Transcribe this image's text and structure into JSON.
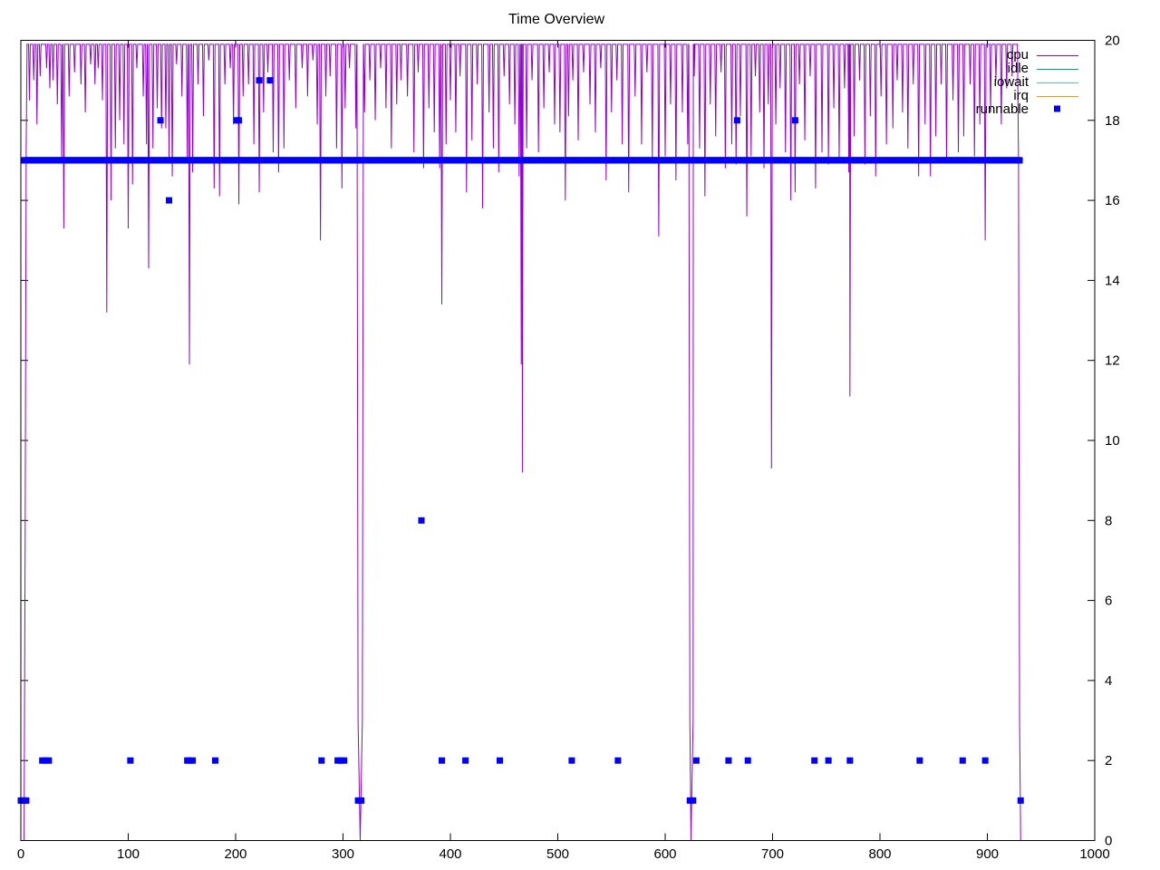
{
  "chart_data": {
    "type": "line",
    "title": "Time Overview",
    "xlabel": "",
    "ylabel": "",
    "xlim": [
      0,
      1000
    ],
    "ylim": [
      0,
      20
    ],
    "x_ticks": [
      0,
      100,
      200,
      300,
      400,
      500,
      600,
      700,
      800,
      900,
      1000
    ],
    "y_ticks": [
      0,
      2,
      4,
      6,
      8,
      10,
      12,
      14,
      16,
      18,
      20
    ],
    "y_axis_side": "right",
    "grid": false,
    "legend_position": "top-right",
    "series": [
      {
        "name": "cpu",
        "style": "line",
        "color": "#9400d3",
        "base_level": 19.9,
        "start_ramp": [
          [
            0,
            0
          ],
          [
            3,
            0
          ],
          [
            4,
            7.5
          ],
          [
            5,
            17.5
          ],
          [
            7,
            19.9
          ]
        ],
        "end_ramp": [
          [
            928,
            19.9
          ],
          [
            929,
            17
          ],
          [
            930,
            3
          ],
          [
            931,
            0
          ]
        ],
        "dips": [
          [
            5,
            17.3
          ],
          [
            8,
            18.5
          ],
          [
            12,
            19.0
          ],
          [
            15,
            17.9
          ],
          [
            18,
            19.1
          ],
          [
            24,
            19.3
          ],
          [
            27,
            18.8
          ],
          [
            30,
            19.0
          ],
          [
            34,
            18.4
          ],
          [
            38,
            17.0
          ],
          [
            40,
            15.3
          ],
          [
            45,
            18.6
          ],
          [
            50,
            19.2
          ],
          [
            56,
            18.9
          ],
          [
            60,
            18.2
          ],
          [
            65,
            19.4
          ],
          [
            69,
            18.9
          ],
          [
            72,
            19.3
          ],
          [
            76,
            18.5
          ],
          [
            80,
            13.2
          ],
          [
            84,
            16.0
          ],
          [
            88,
            17.3
          ],
          [
            92,
            18.0
          ],
          [
            96,
            17.4
          ],
          [
            100,
            15.3
          ],
          [
            104,
            16.4
          ],
          [
            108,
            19.3
          ],
          [
            114,
            18.6
          ],
          [
            117,
            17.4
          ],
          [
            119,
            14.3
          ],
          [
            123,
            17.3
          ],
          [
            127,
            18.3
          ],
          [
            131,
            17.8
          ],
          [
            135,
            17.8
          ],
          [
            138,
            17.0
          ],
          [
            141,
            16.6
          ],
          [
            145,
            19.4
          ],
          [
            150,
            18.6
          ],
          [
            155,
            17.0
          ],
          [
            157,
            11.9
          ],
          [
            160,
            16.7
          ],
          [
            165,
            18.9
          ],
          [
            170,
            18.1
          ],
          [
            175,
            19.5
          ],
          [
            180,
            16.3
          ],
          [
            185,
            16.1
          ],
          [
            190,
            18.9
          ],
          [
            195,
            19.3
          ],
          [
            198,
            17.9
          ],
          [
            203,
            15.9
          ],
          [
            207,
            18.6
          ],
          [
            212,
            18.9
          ],
          [
            217,
            17.4
          ],
          [
            222,
            16.2
          ],
          [
            226,
            18.2
          ],
          [
            230,
            19.2
          ],
          [
            235,
            17.2
          ],
          [
            240,
            16.7
          ],
          [
            245,
            17.3
          ],
          [
            250,
            19.0
          ],
          [
            256,
            18.3
          ],
          [
            262,
            19.3
          ],
          [
            267,
            18.6
          ],
          [
            272,
            19.5
          ],
          [
            276,
            17.9
          ],
          [
            279,
            15.0
          ],
          [
            284,
            18.6
          ],
          [
            288,
            19.1
          ],
          [
            294,
            17.3
          ],
          [
            299,
            16.3
          ],
          [
            302,
            18.3
          ],
          [
            306,
            19.3
          ],
          [
            312,
            17.8
          ],
          [
            320,
            18.2
          ],
          [
            325,
            19.0
          ],
          [
            330,
            18.0
          ],
          [
            335,
            19.3
          ],
          [
            340,
            18.3
          ],
          [
            345,
            17.3
          ],
          [
            350,
            18.4
          ],
          [
            354,
            19.0
          ],
          [
            360,
            18.6
          ],
          [
            366,
            17.2
          ],
          [
            370,
            19.2
          ],
          [
            375,
            16.8
          ],
          [
            380,
            18.3
          ],
          [
            385,
            17.7
          ],
          [
            390,
            16.8
          ],
          [
            392,
            13.4
          ],
          [
            396,
            17.4
          ],
          [
            400,
            18.5
          ],
          [
            405,
            17.7
          ],
          [
            409,
            19.1
          ],
          [
            415,
            16.2
          ],
          [
            420,
            17.5
          ],
          [
            425,
            18.9
          ],
          [
            430,
            15.8
          ],
          [
            436,
            18.2
          ],
          [
            440,
            17.3
          ],
          [
            445,
            16.7
          ],
          [
            450,
            19.1
          ],
          [
            455,
            18.4
          ],
          [
            460,
            17.9
          ],
          [
            464,
            16.6
          ],
          [
            466,
            11.9
          ],
          [
            467,
            9.2
          ],
          [
            471,
            17.3
          ],
          [
            476,
            19.0
          ],
          [
            482,
            17.2
          ],
          [
            487,
            18.3
          ],
          [
            492,
            19.2
          ],
          [
            497,
            17.9
          ],
          [
            502,
            17.7
          ],
          [
            507,
            16.0
          ],
          [
            510,
            18.1
          ],
          [
            514,
            19.0
          ],
          [
            519,
            17.5
          ],
          [
            524,
            19.2
          ],
          [
            530,
            18.4
          ],
          [
            535,
            17.7
          ],
          [
            540,
            19.3
          ],
          [
            545,
            16.5
          ],
          [
            550,
            18.2
          ],
          [
            555,
            19.0
          ],
          [
            560,
            17.4
          ],
          [
            566,
            16.2
          ],
          [
            572,
            18.6
          ],
          [
            578,
            17.4
          ],
          [
            583,
            19.2
          ],
          [
            588,
            17.0
          ],
          [
            594,
            15.1
          ],
          [
            600,
            17.1
          ],
          [
            605,
            18.4
          ],
          [
            610,
            16.5
          ],
          [
            616,
            18.2
          ],
          [
            621,
            17.4
          ],
          [
            627,
            19.1
          ],
          [
            632,
            17.3
          ],
          [
            637,
            16.1
          ],
          [
            642,
            18.4
          ],
          [
            647,
            17.6
          ],
          [
            652,
            19.2
          ],
          [
            656,
            16.8
          ],
          [
            662,
            17.4
          ],
          [
            666,
            16.9
          ],
          [
            670,
            18.1
          ],
          [
            676,
            15.6
          ],
          [
            680,
            17.1
          ],
          [
            684,
            19.1
          ],
          [
            688,
            18.2
          ],
          [
            692,
            16.8
          ],
          [
            696,
            18.4
          ],
          [
            699,
            9.3
          ],
          [
            703,
            17.9
          ],
          [
            707,
            18.8
          ],
          [
            712,
            17.2
          ],
          [
            717,
            16.0
          ],
          [
            721,
            16.2
          ],
          [
            725,
            18.9
          ],
          [
            730,
            17.5
          ],
          [
            735,
            19.1
          ],
          [
            740,
            16.3
          ],
          [
            746,
            17.2
          ],
          [
            752,
            16.9
          ],
          [
            757,
            18.3
          ],
          [
            762,
            17.0
          ],
          [
            767,
            18.8
          ],
          [
            771,
            16.7
          ],
          [
            772,
            11.1
          ],
          [
            776,
            17.6
          ],
          [
            781,
            19.0
          ],
          [
            786,
            16.9
          ],
          [
            791,
            18.1
          ],
          [
            796,
            16.6
          ],
          [
            801,
            18.6
          ],
          [
            806,
            17.4
          ],
          [
            812,
            17.8
          ],
          [
            816,
            19.0
          ],
          [
            821,
            18.2
          ],
          [
            826,
            17.3
          ],
          [
            831,
            18.9
          ],
          [
            836,
            16.6
          ],
          [
            842,
            17.9
          ],
          [
            847,
            16.6
          ],
          [
            852,
            17.6
          ],
          [
            857,
            18.9
          ],
          [
            862,
            17.0
          ],
          [
            868,
            18.5
          ],
          [
            873,
            17.2
          ],
          [
            878,
            17.6
          ],
          [
            884,
            18.9
          ],
          [
            888,
            17.1
          ],
          [
            893,
            17.9
          ],
          [
            898,
            15.0
          ],
          [
            903,
            18.2
          ],
          [
            908,
            19.0
          ],
          [
            913,
            17.9
          ],
          [
            918,
            18.8
          ],
          [
            923,
            19.1
          ]
        ],
        "gaps": [
          {
            "start": 313,
            "bottom": 316,
            "end": 319
          },
          {
            "start": 622,
            "bottom": 624,
            "end": 627
          }
        ]
      },
      {
        "name": "idle",
        "style": "line",
        "color": "#009e73",
        "points": []
      },
      {
        "name": "iowait",
        "style": "line",
        "color": "#56b4e9",
        "points": []
      },
      {
        "name": "irq",
        "style": "line",
        "color": "#e69f00",
        "points": []
      },
      {
        "name": "runnable",
        "style": "points",
        "color": "#0000ff",
        "band": {
          "y": 17,
          "x_start": 3,
          "x_end": 930
        },
        "points": [
          [
            0,
            1
          ],
          [
            3,
            1
          ],
          [
            5,
            1
          ],
          [
            20,
            2
          ],
          [
            23,
            2
          ],
          [
            26,
            2
          ],
          [
            102,
            2
          ],
          [
            130,
            18
          ],
          [
            138,
            16
          ],
          [
            155,
            2
          ],
          [
            157,
            2
          ],
          [
            160,
            2
          ],
          [
            181,
            2
          ],
          [
            201,
            18
          ],
          [
            203,
            18
          ],
          [
            222,
            19
          ],
          [
            232,
            19
          ],
          [
            280,
            2
          ],
          [
            295,
            2
          ],
          [
            298,
            2
          ],
          [
            301,
            2
          ],
          [
            314,
            1
          ],
          [
            317,
            1
          ],
          [
            373,
            8
          ],
          [
            392,
            2
          ],
          [
            414,
            2
          ],
          [
            446,
            2
          ],
          [
            513,
            2
          ],
          [
            556,
            2
          ],
          [
            623,
            1
          ],
          [
            626,
            1
          ],
          [
            629,
            2
          ],
          [
            667,
            18
          ],
          [
            659,
            2
          ],
          [
            677,
            2
          ],
          [
            721,
            18
          ],
          [
            739,
            2
          ],
          [
            752,
            2
          ],
          [
            772,
            2
          ],
          [
            837,
            2
          ],
          [
            877,
            2
          ],
          [
            898,
            2
          ],
          [
            931,
            1
          ]
        ]
      }
    ]
  }
}
